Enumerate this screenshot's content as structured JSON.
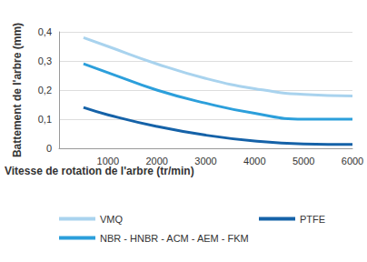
{
  "chart_data": {
    "type": "line",
    "xlabel": "Vitesse de rotation de l'arbre (tr/min)",
    "ylabel": "Battement de l'arbre (mm)",
    "x": [
      500,
      1000,
      2000,
      3000,
      4000,
      5000,
      6000
    ],
    "series": [
      {
        "name": "VMQ",
        "color": "#a9d3ee",
        "values": [
          0.38,
          0.35,
          0.29,
          0.24,
          0.205,
          0.185,
          0.18
        ]
      },
      {
        "name": "NBR - HNBR - ACM - AEM - FKM",
        "color": "#2c9fdb",
        "values": [
          0.29,
          0.26,
          0.2,
          0.155,
          0.12,
          0.1,
          0.1
        ]
      },
      {
        "name": "PTFE",
        "color": "#1562a8",
        "values": [
          0.14,
          0.115,
          0.075,
          0.045,
          0.025,
          0.015,
          0.013
        ]
      }
    ],
    "xlim": [
      0,
      6000
    ],
    "xticks": [
      1000,
      2000,
      3000,
      4000,
      5000,
      6000
    ],
    "ylim": [
      0,
      0.4
    ],
    "yticks": [
      0,
      {
        "value": 0.1,
        "label": "0,1"
      },
      {
        "value": 0.2,
        "label": "0,2"
      },
      {
        "value": 0.3,
        "label": "0,3"
      },
      {
        "value": 0.4,
        "label": "0,4"
      }
    ],
    "grid": true,
    "legend": "bottom",
    "marker": "none"
  }
}
